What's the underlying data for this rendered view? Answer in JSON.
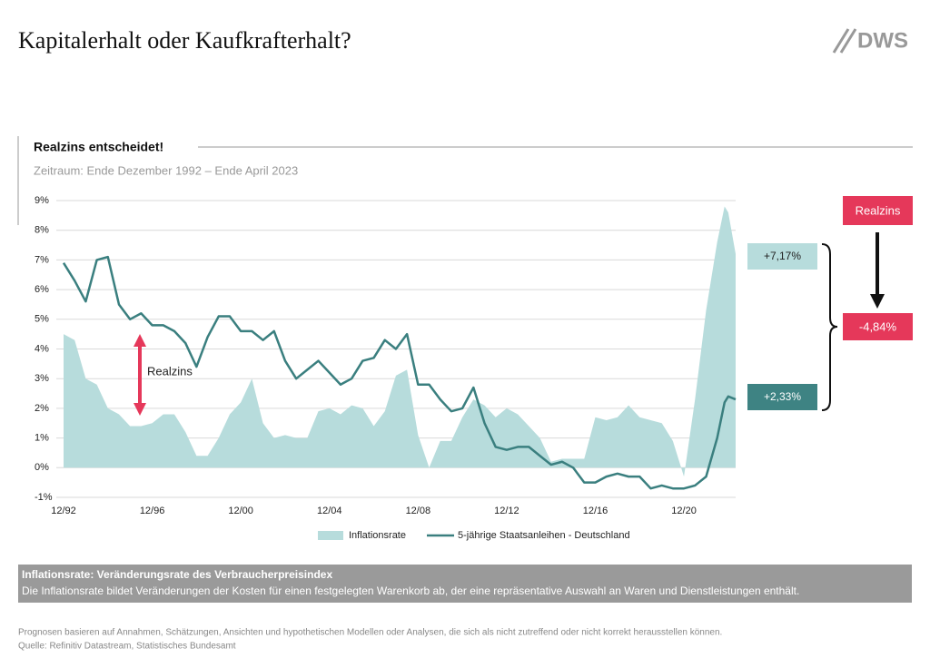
{
  "title": "Kapitalerhalt oder Kaufkrafterhalt?",
  "logo": "DWS",
  "section": "Realzins entscheidet!",
  "info": {
    "title": "Inflationsrate: Veränderungsrate des Verbraucherpreisindex",
    "text": "Die Inflationsrate bildet Veränderungen der Kosten für einen festgelegten Warenkorb ab, der eine repräsentative Auswahl an Waren und Dienstleistungen enthält."
  },
  "footer": [
    "Prognosen basieren auf Annahmen, Schätzungen, Ansichten und hypothetischen Modellen oder Analysen, die sich als nicht zutreffend oder nicht korrekt herausstellen können.",
    "Quelle: Refinitiv Datastream, Statistisches Bundesamt"
  ],
  "chart_data": {
    "type": "line",
    "subtitle": "Zeitraum: Ende Dezember 1992 – Ende April 2023",
    "x": [
      "12/92",
      "06/93",
      "12/93",
      "06/94",
      "12/94",
      "06/95",
      "12/95",
      "06/96",
      "12/96",
      "06/97",
      "12/97",
      "06/98",
      "12/98",
      "06/99",
      "12/99",
      "06/00",
      "12/00",
      "06/01",
      "12/01",
      "06/02",
      "12/02",
      "06/03",
      "12/03",
      "06/04",
      "12/04",
      "06/05",
      "12/05",
      "06/06",
      "12/06",
      "06/07",
      "12/07",
      "06/08",
      "12/08",
      "06/09",
      "12/09",
      "06/10",
      "12/10",
      "06/11",
      "12/11",
      "06/12",
      "12/12",
      "06/13",
      "12/13",
      "06/14",
      "12/14",
      "06/15",
      "12/15",
      "06/16",
      "12/16",
      "06/17",
      "12/17",
      "06/18",
      "12/18",
      "06/19",
      "12/19",
      "06/20",
      "12/20",
      "06/21",
      "12/21",
      "06/22",
      "10/22",
      "12/22",
      "04/23"
    ],
    "series": [
      {
        "name": "Inflationsrate",
        "kind": "area",
        "color": "#b7dcdc",
        "values": [
          4.5,
          4.3,
          3.0,
          2.8,
          2.0,
          1.8,
          1.4,
          1.4,
          1.5,
          1.8,
          1.8,
          1.2,
          0.4,
          0.4,
          1.0,
          1.8,
          2.2,
          3.0,
          1.5,
          1.0,
          1.1,
          1.0,
          1.0,
          1.9,
          2.0,
          1.8,
          2.1,
          2.0,
          1.4,
          1.9,
          3.1,
          3.3,
          1.1,
          0.0,
          0.9,
          0.9,
          1.7,
          2.3,
          2.1,
          1.7,
          2.0,
          1.8,
          1.4,
          1.0,
          0.2,
          0.3,
          0.3,
          0.3,
          1.7,
          1.6,
          1.7,
          2.1,
          1.7,
          1.6,
          1.5,
          0.9,
          -0.3,
          2.3,
          5.3,
          7.6,
          8.8,
          8.6,
          7.2
        ]
      },
      {
        "name": "5-jährige Staatsanleihen - Deutschland",
        "kind": "line",
        "color": "#3a7f7f",
        "values": [
          6.9,
          6.3,
          5.6,
          7.0,
          7.1,
          5.5,
          5.0,
          5.2,
          4.8,
          4.8,
          4.6,
          4.2,
          3.4,
          4.4,
          5.1,
          5.1,
          4.6,
          4.6,
          4.3,
          4.6,
          3.6,
          3.0,
          3.3,
          3.6,
          3.2,
          2.8,
          3.0,
          3.6,
          3.7,
          4.3,
          4.0,
          4.5,
          2.8,
          2.8,
          2.3,
          1.9,
          2.0,
          2.7,
          1.5,
          0.7,
          0.6,
          0.7,
          0.7,
          0.4,
          0.1,
          0.2,
          0.0,
          -0.5,
          -0.5,
          -0.3,
          -0.2,
          -0.3,
          -0.3,
          -0.7,
          -0.6,
          -0.7,
          -0.7,
          -0.6,
          -0.3,
          1.0,
          2.2,
          2.4,
          2.3
        ]
      }
    ],
    "xlim": [
      "12/92",
      "04/23"
    ],
    "xticks": [
      "12/92",
      "12/96",
      "12/00",
      "12/04",
      "12/08",
      "12/12",
      "12/16",
      "12/20"
    ],
    "ylim": [
      -1,
      9
    ],
    "yticks": [
      {
        "value": -1,
        "label": "-1%"
      },
      {
        "value": 0,
        "label": "0%"
      },
      {
        "value": 1,
        "label": "1%"
      },
      {
        "value": 2,
        "label": "2%"
      },
      {
        "value": 3,
        "label": "3%"
      },
      {
        "value": 4,
        "label": "4%"
      },
      {
        "value": 5,
        "label": "5%"
      },
      {
        "value": 6,
        "label": "6%"
      },
      {
        "value": 7,
        "label": "7%"
      },
      {
        "value": 8,
        "label": "8%"
      },
      {
        "value": 9,
        "label": "9%"
      }
    ],
    "grid": true,
    "annotations": {
      "realzins_arrow": "Realzins",
      "inflation_box": "+7,17%",
      "bond_box": "+2,33%",
      "realzins_box": "Realzins",
      "result_box": "-4,84%"
    }
  }
}
